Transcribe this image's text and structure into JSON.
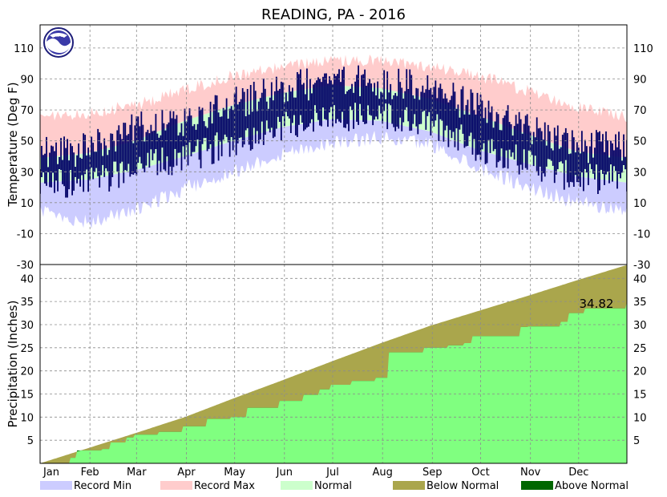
{
  "chart_data": [
    {
      "type": "area",
      "panel": "temperature",
      "title": "READING, PA - 2016",
      "ylabel": "Temperature (Deg F)",
      "ylim": [
        -30,
        125
      ],
      "yticks": [
        -30,
        -10,
        10,
        30,
        50,
        70,
        90,
        110
      ],
      "months": [
        "Jan",
        "Feb",
        "Mar",
        "Apr",
        "May",
        "Jun",
        "Jul",
        "Aug",
        "Sep",
        "Oct",
        "Nov",
        "Dec"
      ],
      "month_start_days": [
        1,
        32,
        61,
        92,
        122,
        153,
        183,
        214,
        245,
        275,
        306,
        336
      ],
      "grid": true,
      "days_in_year": 366,
      "seasonal_anchor_days": [
        1,
        31,
        60,
        91,
        121,
        152,
        182,
        213,
        244,
        274,
        305,
        335,
        366
      ],
      "record_max_curve": [
        65,
        68,
        73,
        83,
        92,
        98,
        102,
        102,
        98,
        92,
        82,
        72,
        65
      ],
      "record_min_curve": [
        5,
        -3,
        5,
        19,
        30,
        42,
        49,
        52,
        48,
        33,
        20,
        10,
        5
      ],
      "normal_max_curve": [
        39,
        42,
        50,
        63,
        73,
        81,
        86,
        84,
        77,
        66,
        54,
        43,
        39
      ],
      "normal_min_curve": [
        23,
        25,
        31,
        40,
        50,
        59,
        64,
        63,
        56,
        44,
        35,
        27,
        23
      ],
      "observed_max_curve": [
        42,
        45,
        58,
        62,
        74,
        83,
        90,
        88,
        84,
        70,
        58,
        47,
        45
      ],
      "observed_min_curve": [
        24,
        22,
        33,
        38,
        50,
        60,
        66,
        66,
        60,
        46,
        36,
        25,
        26
      ],
      "series": [
        {
          "name": "Record Min",
          "color": "#ccccff"
        },
        {
          "name": "Record Max",
          "color": "#ffcccc"
        },
        {
          "name": "Normal",
          "color": "#ccffcc"
        },
        {
          "name": "Observed",
          "color": "#000066"
        }
      ]
    },
    {
      "type": "area",
      "panel": "precipitation",
      "ylabel": "Precipitation (Inches)",
      "ylim": [
        0,
        43
      ],
      "yticks": [
        5,
        10,
        15,
        20,
        25,
        30,
        35,
        40
      ],
      "annotation": "34.82",
      "normal_cumulative": {
        "x_day": [
          1,
          31,
          60,
          91,
          121,
          152,
          182,
          213,
          244,
          274,
          305,
          335,
          366
        ],
        "y": [
          0,
          3.3,
          6.5,
          10.0,
          14.0,
          18.0,
          22.0,
          26.0,
          29.8,
          33.0,
          36.3,
          39.6,
          42.9
        ]
      },
      "observed_cumulative": {
        "x_day": [
          1,
          20,
          24,
          40,
          45,
          55,
          60,
          75,
          90,
          105,
          120,
          130,
          150,
          165,
          175,
          182,
          195,
          210,
          218,
          240,
          255,
          265,
          270,
          300,
          305,
          325,
          330,
          340,
          366
        ],
        "y": [
          0,
          1.2,
          2.8,
          3.1,
          4.5,
          5.6,
          6.2,
          6.8,
          8.0,
          9.6,
          10.0,
          12.0,
          13.5,
          14.8,
          16.0,
          17.0,
          17.8,
          18.5,
          24.0,
          25.0,
          25.5,
          26.0,
          27.5,
          29.5,
          29.6,
          30.6,
          32.5,
          33.5,
          34.82
        ]
      },
      "series": [
        {
          "name": "Below Normal",
          "color": "#aaa64c"
        },
        {
          "name": "Above Normal",
          "color": "#006600"
        },
        {
          "name": "Observed",
          "color": "#80ff80"
        }
      ]
    }
  ],
  "legend": [
    {
      "label": "Record Min",
      "color": "#ccccff"
    },
    {
      "label": "Record Max",
      "color": "#ffcccc"
    },
    {
      "label": "Normal",
      "color": "#ccffcc"
    },
    {
      "label": "Below Normal",
      "color": "#aaa64c"
    },
    {
      "label": "Above Normal",
      "color": "#006600"
    }
  ],
  "logo": {
    "text": "NOAA"
  }
}
